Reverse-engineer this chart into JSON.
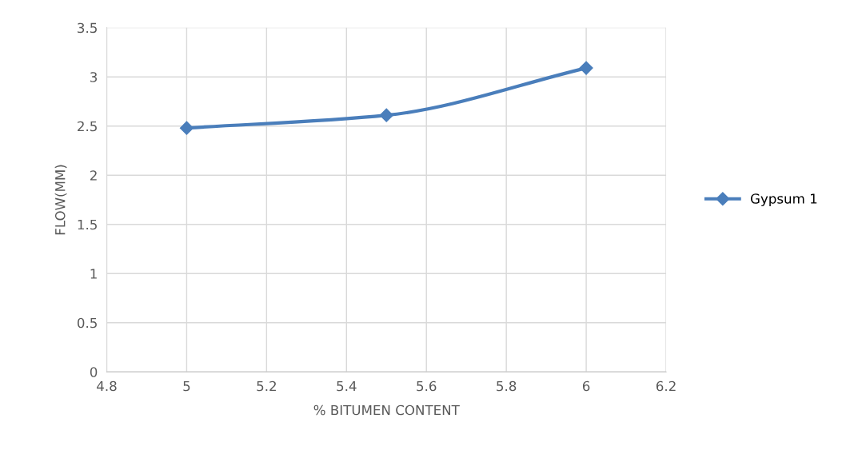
{
  "chart_data": {
    "type": "line",
    "xlabel": "% BITUMEN CONTENT",
    "ylabel": "FLOW(MM)",
    "x": [
      5,
      5.5,
      6
    ],
    "series": [
      {
        "name": "Gypsum 1",
        "color": "#4a7ebb",
        "values": [
          2.48,
          2.61,
          3.09
        ]
      }
    ],
    "xlim": [
      4.8,
      6.2
    ],
    "xticks": [
      4.8,
      5,
      5.2,
      5.4,
      5.6,
      5.8,
      6,
      6.2
    ],
    "ylim": [
      0,
      3.5
    ],
    "yticks": [
      0,
      0.5,
      1,
      1.5,
      2,
      2.5,
      3,
      3.5
    ],
    "grid": true,
    "legend": "right",
    "marker": "diamond",
    "line_style": "solid"
  }
}
